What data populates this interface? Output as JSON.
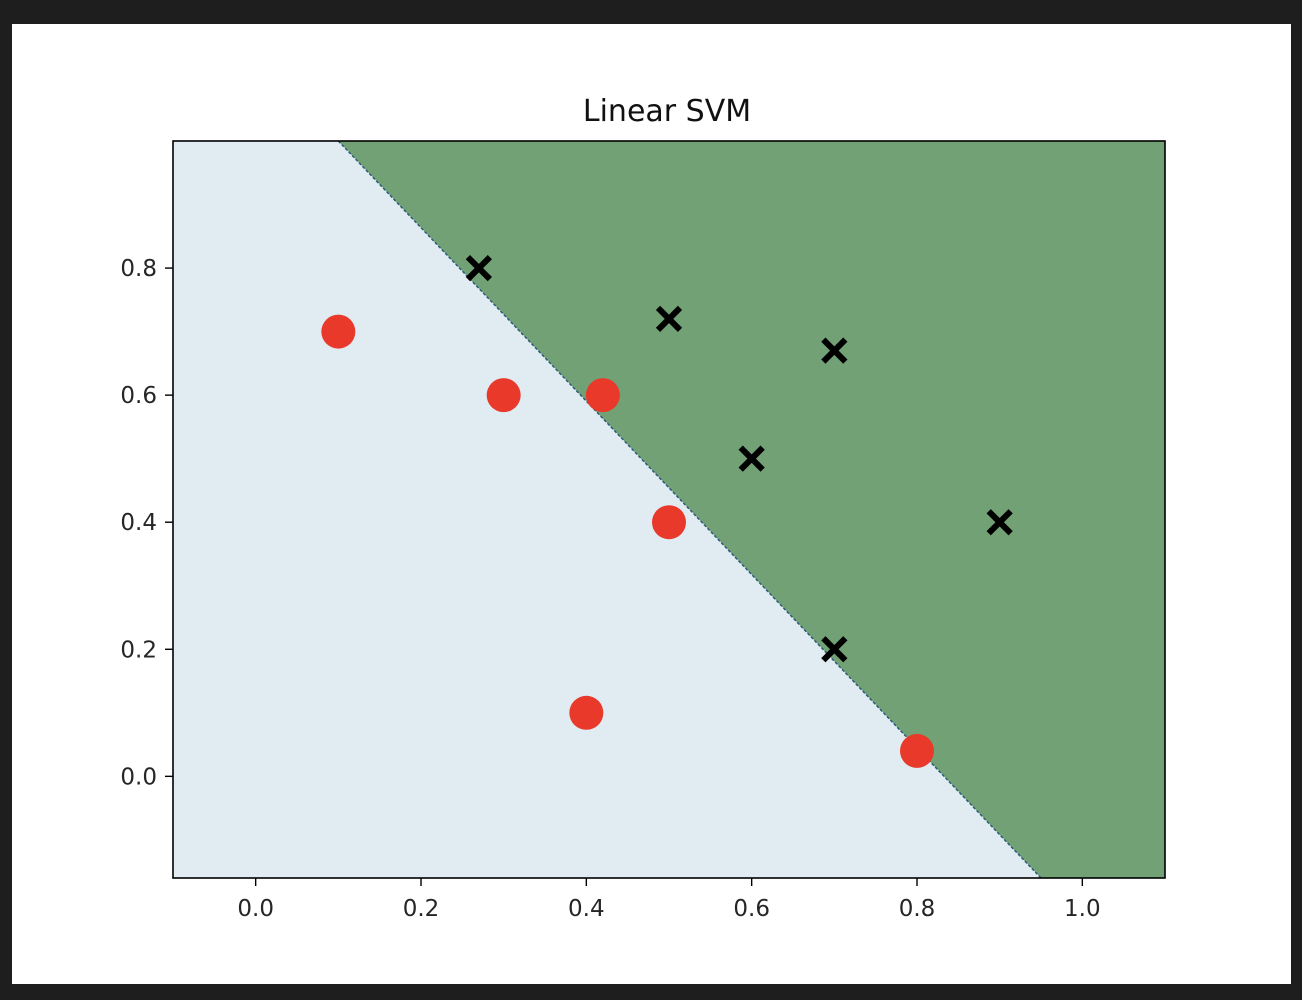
{
  "chart_data": {
    "type": "scatter",
    "title": "Linear SVM",
    "xlabel": "",
    "ylabel": "",
    "xlim": [
      -0.1,
      1.1
    ],
    "ylim": [
      -0.16,
      1.0
    ],
    "x_ticks": [
      0.0,
      0.2,
      0.4,
      0.6,
      0.8,
      1.0
    ],
    "x_tick_labels": [
      "0.0",
      "0.2",
      "0.4",
      "0.6",
      "0.8",
      "1.0"
    ],
    "y_ticks": [
      0.0,
      0.2,
      0.4,
      0.6,
      0.8
    ],
    "y_tick_labels": [
      "0.0",
      "0.2",
      "0.4",
      "0.6",
      "0.8"
    ],
    "grid": false,
    "decision_boundary": {
      "points": [
        [
          0.1,
          1.0
        ],
        [
          0.95,
          -0.16
        ]
      ]
    },
    "regions": [
      {
        "side": "lower-left",
        "color": "#e1ebf2"
      },
      {
        "side": "upper-right",
        "color": "#73a176"
      }
    ],
    "series": [
      {
        "marker": "circle",
        "color": "#e8392a",
        "points": [
          [
            0.1,
            0.7
          ],
          [
            0.3,
            0.6
          ],
          [
            0.42,
            0.6
          ],
          [
            0.5,
            0.4
          ],
          [
            0.4,
            0.1
          ],
          [
            0.8,
            0.04
          ]
        ]
      },
      {
        "marker": "x",
        "color": "#000000",
        "points": [
          [
            0.27,
            0.8
          ],
          [
            0.5,
            0.72
          ],
          [
            0.7,
            0.67
          ],
          [
            0.6,
            0.5
          ],
          [
            0.9,
            0.4
          ],
          [
            0.7,
            0.2
          ]
        ]
      }
    ]
  }
}
